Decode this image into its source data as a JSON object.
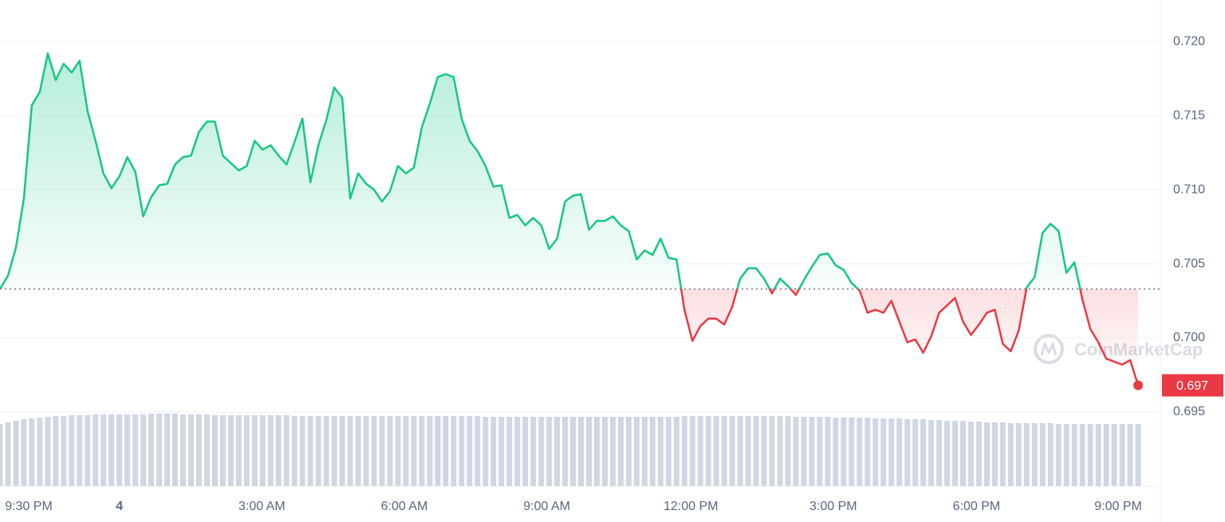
{
  "chart_data": {
    "type": "line",
    "values": [
      0.7033,
      0.7042,
      0.7061,
      0.7094,
      0.7157,
      0.7166,
      0.7192,
      0.7174,
      0.7185,
      0.7179,
      0.7187,
      0.7153,
      0.7133,
      0.7111,
      0.7101,
      0.7109,
      0.7122,
      0.7112,
      0.7082,
      0.7095,
      0.7103,
      0.7104,
      0.7117,
      0.7122,
      0.7123,
      0.7139,
      0.7146,
      0.7146,
      0.7123,
      0.7118,
      0.7113,
      0.7116,
      0.7133,
      0.7127,
      0.713,
      0.7123,
      0.7117,
      0.7132,
      0.7148,
      0.7105,
      0.713,
      0.7147,
      0.7169,
      0.7162,
      0.7094,
      0.7111,
      0.7104,
      0.71,
      0.7092,
      0.7099,
      0.7116,
      0.7111,
      0.7115,
      0.7142,
      0.7158,
      0.7176,
      0.7178,
      0.7176,
      0.7148,
      0.7133,
      0.7126,
      0.7116,
      0.7102,
      0.7103,
      0.7081,
      0.7083,
      0.7076,
      0.7081,
      0.7076,
      0.706,
      0.7067,
      0.7092,
      0.7096,
      0.7097,
      0.7073,
      0.7079,
      0.7079,
      0.7082,
      0.7076,
      0.7072,
      0.7053,
      0.7059,
      0.7056,
      0.7067,
      0.7054,
      0.7053,
      0.7019,
      0.6998,
      0.7008,
      0.7013,
      0.7013,
      0.7009,
      0.7021,
      0.704,
      0.7047,
      0.7047,
      0.704,
      0.703,
      0.704,
      0.7035,
      0.7029,
      0.7039,
      0.7048,
      0.7056,
      0.7057,
      0.7049,
      0.7046,
      0.7037,
      0.7032,
      0.7017,
      0.7019,
      0.7017,
      0.7025,
      0.7011,
      0.6997,
      0.6999,
      0.699,
      0.7001,
      0.7017,
      0.7022,
      0.7027,
      0.7011,
      0.7002,
      0.7009,
      0.7017,
      0.7019,
      0.6996,
      0.6991,
      0.7005,
      0.7034,
      0.7041,
      0.7071,
      0.7077,
      0.7072,
      0.7044,
      0.7051,
      0.7026,
      0.7006,
      0.6997,
      0.6986,
      0.6984,
      0.6982,
      0.6985,
      0.6968
    ],
    "volume": [
      78,
      80,
      82,
      84,
      85,
      86,
      87,
      88,
      88,
      89,
      89,
      89,
      90,
      90,
      90,
      90,
      90,
      90,
      90,
      91,
      91,
      91,
      91,
      90,
      90,
      90,
      90,
      89,
      89,
      89,
      89,
      89,
      89,
      89,
      89,
      89,
      89,
      88,
      88,
      88,
      88,
      88,
      88,
      88,
      88,
      88,
      88,
      88,
      88,
      88,
      88,
      88,
      88,
      88,
      88,
      88,
      88,
      88,
      88,
      88,
      88,
      87,
      87,
      87,
      87,
      87,
      87,
      87,
      87,
      87,
      87,
      87,
      87,
      87,
      87,
      87,
      87,
      87,
      87,
      87,
      87,
      87,
      87,
      87,
      87,
      87,
      88,
      88,
      88,
      88,
      88,
      88,
      88,
      88,
      88,
      88,
      88,
      88,
      88,
      88,
      87,
      87,
      87,
      87,
      87,
      86,
      86,
      86,
      86,
      86,
      85,
      85,
      85,
      85,
      84,
      84,
      84,
      83,
      83,
      82,
      82,
      82,
      81,
      81,
      80,
      80,
      80,
      79,
      79,
      79,
      79,
      79,
      79,
      78,
      78,
      78,
      78,
      78,
      78,
      78,
      78,
      78,
      78,
      78
    ],
    "volume_ylim": [
      0,
      100
    ],
    "baseline": 0.7033,
    "up_color": "#16c784",
    "down_color": "#ea3943",
    "volume_color": "#cfd6e4",
    "current_price": {
      "value": 0.6968,
      "label": "0.697"
    },
    "watermark": "CoinMarketCap",
    "xlim": [
      0,
      145.8
    ],
    "xticks": [
      {
        "value": 0,
        "label": "9:30 PM"
      },
      {
        "value": 15,
        "label": "4",
        "bold": true
      },
      {
        "value": 32.9,
        "label": "3:00 AM"
      },
      {
        "value": 50.8,
        "label": "6:00 AM"
      },
      {
        "value": 68.7,
        "label": "9:00 AM"
      },
      {
        "value": 86.8,
        "label": "12:00 PM"
      },
      {
        "value": 104.7,
        "label": "3:00 PM"
      },
      {
        "value": 122.7,
        "label": "6:00 PM"
      },
      {
        "value": 140.5,
        "label": "9:00 PM"
      }
    ],
    "ylim": [
      0.69,
      0.7228
    ],
    "yticks": [
      {
        "value": 0.695,
        "label": "0.695"
      },
      {
        "value": 0.7,
        "label": "0.700"
      },
      {
        "value": 0.705,
        "label": "0.705"
      },
      {
        "value": 0.71,
        "label": "0.710"
      },
      {
        "value": 0.715,
        "label": "0.715"
      },
      {
        "value": 0.72,
        "label": "0.720"
      }
    ],
    "grid": true
  }
}
